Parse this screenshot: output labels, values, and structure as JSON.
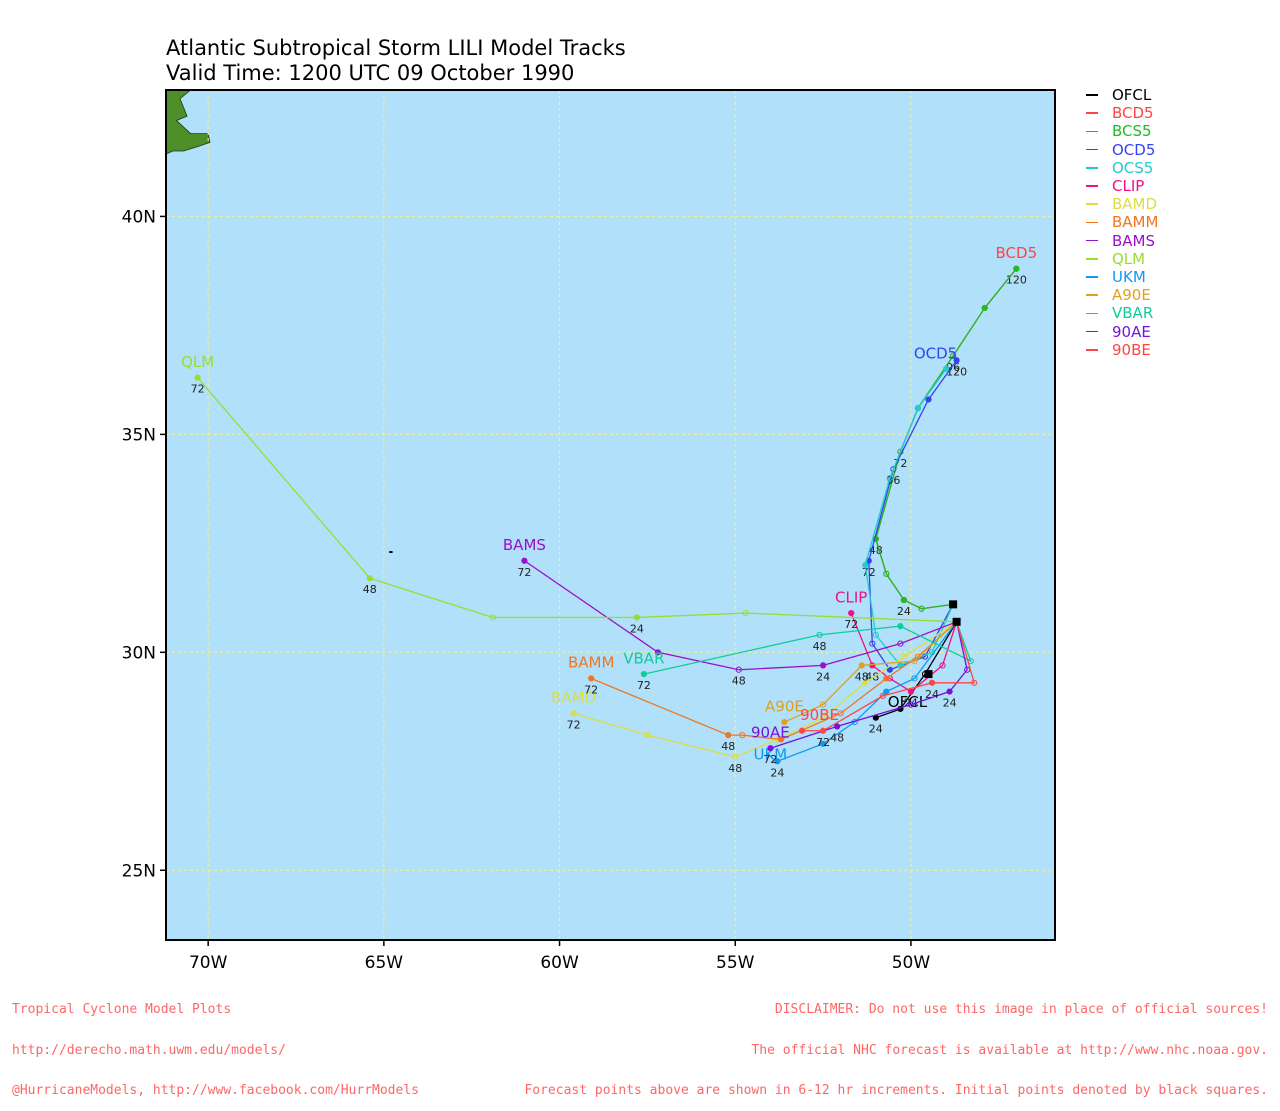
{
  "title": "Atlantic Subtropical Storm LILI Model Tracks",
  "subtitle": "Valid Time: 1200 UTC 09 October 1990",
  "footer_left": [
    "Tropical Cyclone Model Plots",
    "http://derecho.math.uwm.edu/models/",
    "@HurricaneModels, http://www.facebook.com/HurrModels"
  ],
  "footer_right": [
    "DISCLAIMER: Do not use this image in place of official sources!",
    "The official NHC forecast is available at http://www.nhc.noaa.gov.",
    "Forecast points above are shown in 6-12 hr increments. Initial points denoted by black squares."
  ],
  "chart_data": {
    "type": "line",
    "projection": "lon-lat map",
    "xlim": [
      -71.2,
      -45.9
    ],
    "ylim": [
      23.4,
      42.9
    ],
    "xticks": [
      {
        "value": -70,
        "label": "70W"
      },
      {
        "value": -65,
        "label": "65W"
      },
      {
        "value": -60,
        "label": "60W"
      },
      {
        "value": -55,
        "label": "55W"
      },
      {
        "value": -50,
        "label": "50W"
      }
    ],
    "yticks": [
      {
        "value": 25,
        "label": "25N"
      },
      {
        "value": 30,
        "label": "30N"
      },
      {
        "value": 35,
        "label": "35N"
      },
      {
        "value": 40,
        "label": "40N"
      }
    ],
    "grid": true,
    "legend_position": "right",
    "colors": {
      "ocean": "#b0e0fa",
      "land": "#4e8f2a",
      "grid": "#f0f0a0"
    },
    "initial_points": [
      {
        "lon": -48.8,
        "lat": 31.1
      },
      {
        "lon": -48.7,
        "lat": 30.7
      },
      {
        "lon": -49.5,
        "lat": 29.5
      }
    ],
    "series": [
      {
        "name": "OFCL",
        "color": "#000000",
        "label_text": "OFCL",
        "points": [
          [
            -48.7,
            30.7
          ],
          [
            -49.6,
            29.5
          ],
          [
            -50.3,
            28.7
          ],
          [
            -51.0,
            28.5
          ]
        ],
        "hours": {
          "3": "24"
        },
        "label_at": [
          -50.1,
          28.7
        ]
      },
      {
        "name": "BCD5",
        "color": "#ff4444",
        "label_text": "BCD5",
        "points": [
          [
            -48.8,
            31.1
          ],
          [
            -49.7,
            31.0
          ],
          [
            -50.2,
            31.2
          ],
          [
            -50.7,
            31.8
          ],
          [
            -51.0,
            32.6
          ],
          [
            -50.3,
            34.6
          ],
          [
            -49.8,
            35.6
          ],
          [
            -48.8,
            36.8
          ],
          [
            -47.9,
            37.9
          ],
          [
            -47.0,
            38.8
          ]
        ],
        "hours": {
          "2": "24",
          "4": "48",
          "5": "72",
          "7": "96",
          "9": "120"
        },
        "label_at": [
          -47.0,
          39.0
        ]
      },
      {
        "name": "BCS5",
        "color": "#22bb22",
        "label_text": "",
        "points": [
          [
            -48.8,
            31.1
          ],
          [
            -49.7,
            31.0
          ],
          [
            -50.2,
            31.2
          ],
          [
            -50.7,
            31.8
          ],
          [
            -51.0,
            32.6
          ],
          [
            -50.3,
            34.6
          ],
          [
            -49.8,
            35.6
          ],
          [
            -48.8,
            36.8
          ],
          [
            -47.9,
            37.9
          ],
          [
            -47.0,
            38.8
          ]
        ],
        "hours": {},
        "label_at": null
      },
      {
        "name": "OCD5",
        "color": "#3344ee",
        "label_text": "OCD5",
        "points": [
          [
            -48.8,
            31.1
          ],
          [
            -49.6,
            29.9
          ],
          [
            -50.6,
            29.6
          ],
          [
            -51.1,
            30.2
          ],
          [
            -51.2,
            32.1
          ],
          [
            -50.5,
            34.2
          ],
          [
            -49.5,
            35.8
          ],
          [
            -48.7,
            36.7
          ]
        ],
        "hours": {
          "4": "72",
          "5": "96",
          "7": "120"
        },
        "label_at": [
          -49.3,
          36.7
        ]
      },
      {
        "name": "OCS5",
        "color": "#22cccc",
        "label_text": "",
        "points": [
          [
            -48.8,
            31.1
          ],
          [
            -49.4,
            30.0
          ],
          [
            -50.3,
            29.7
          ],
          [
            -51.0,
            30.4
          ],
          [
            -51.3,
            32.0
          ],
          [
            -50.6,
            34.0
          ],
          [
            -49.8,
            35.6
          ],
          [
            -49.0,
            36.5
          ]
        ],
        "hours": {},
        "label_at": null
      },
      {
        "name": "CLIP",
        "color": "#ee1188",
        "label_text": "CLIP",
        "points": [
          [
            -48.7,
            30.7
          ],
          [
            -49.1,
            29.7
          ],
          [
            -50.0,
            29.1
          ],
          [
            -50.6,
            29.4
          ],
          [
            -51.1,
            29.7
          ],
          [
            -51.7,
            30.9
          ]
        ],
        "hours": {
          "2": "24",
          "4": "48",
          "5": "72"
        },
        "label_at": [
          -51.7,
          31.1
        ]
      },
      {
        "name": "BAMD",
        "color": "#dddd44",
        "label_text": "BAMD",
        "points": [
          [
            -48.7,
            30.7
          ],
          [
            -50.2,
            29.9
          ],
          [
            -51.3,
            29.3
          ],
          [
            -52.5,
            28.5
          ],
          [
            -53.8,
            28.0
          ],
          [
            -55.0,
            27.6
          ],
          [
            -57.5,
            28.1
          ],
          [
            -59.6,
            28.6
          ]
        ],
        "hours": {
          "5": "48",
          "7": "72"
        },
        "label_at": [
          -59.6,
          28.8
        ]
      },
      {
        "name": "BAMM",
        "color": "#ee7722",
        "label_text": "BAMM",
        "points": [
          [
            -48.7,
            30.7
          ],
          [
            -49.8,
            29.9
          ],
          [
            -50.7,
            29.4
          ],
          [
            -52.0,
            28.6
          ],
          [
            -53.7,
            28.0
          ],
          [
            -54.8,
            28.1
          ],
          [
            -55.2,
            28.1
          ],
          [
            -59.1,
            29.4
          ]
        ],
        "hours": {
          "6": "48",
          "7": "72"
        },
        "label_at": [
          -59.1,
          29.6
        ]
      },
      {
        "name": "BAMS",
        "color": "#9911cc",
        "label_text": "BAMS",
        "points": [
          [
            -48.7,
            30.7
          ],
          [
            -50.3,
            30.2
          ],
          [
            -52.5,
            29.7
          ],
          [
            -54.9,
            29.6
          ],
          [
            -57.2,
            30.0
          ],
          [
            -61.0,
            32.1
          ]
        ],
        "hours": {
          "2": "24",
          "3": "48",
          "5": "72"
        },
        "label_at": [
          -61.0,
          32.3
        ]
      },
      {
        "name": "QLM",
        "color": "#99dd33",
        "label_text": "QLM",
        "points": [
          [
            -48.7,
            30.7
          ],
          [
            -54.7,
            30.9
          ],
          [
            -57.8,
            30.8
          ],
          [
            -61.9,
            30.8
          ],
          [
            -65.4,
            31.7
          ],
          [
            -70.3,
            36.3
          ]
        ],
        "hours": {
          "2": "24",
          "4": "48",
          "5": "72"
        },
        "label_at": [
          -70.3,
          36.5
        ]
      },
      {
        "name": "UKM",
        "color": "#1199ee",
        "label_text": "UKM",
        "points": [
          [
            -48.7,
            30.7
          ],
          [
            -49.9,
            29.4
          ],
          [
            -50.7,
            29.1
          ],
          [
            -51.6,
            28.4
          ],
          [
            -52.5,
            27.9
          ],
          [
            -53.8,
            27.5
          ]
        ],
        "hours": {
          "5": "24"
        },
        "label_at": [
          -54.0,
          27.5
        ]
      },
      {
        "name": "A90E",
        "color": "#e0a020",
        "label_text": "A90E",
        "points": [
          [
            -48.7,
            30.7
          ],
          [
            -49.9,
            29.8
          ],
          [
            -51.4,
            29.7
          ],
          [
            -52.5,
            28.8
          ],
          [
            -53.6,
            28.4
          ]
        ],
        "hours": {
          "2": "48"
        },
        "label_at": [
          -53.6,
          28.6
        ]
      },
      {
        "name": "VBAR",
        "color": "#11cc99",
        "label_text": "VBAR",
        "points": [
          [
            -48.7,
            30.7
          ],
          [
            -48.3,
            29.8
          ],
          [
            -50.3,
            30.6
          ],
          [
            -52.6,
            30.4
          ],
          [
            -57.6,
            29.5
          ]
        ],
        "hours": {
          "3": "48",
          "4": "72"
        },
        "label_at": [
          -57.6,
          29.7
        ]
      },
      {
        "name": "90AE",
        "color": "#7711dd",
        "label_text": "90AE",
        "points": [
          [
            -48.7,
            30.7
          ],
          [
            -48.4,
            29.6
          ],
          [
            -48.9,
            29.1
          ],
          [
            -50.0,
            28.8
          ],
          [
            -52.1,
            28.3
          ],
          [
            -54.0,
            27.8
          ]
        ],
        "hours": {
          "2": "24",
          "4": "48",
          "5": "72"
        },
        "label_at": [
          -54.0,
          28.0
        ]
      },
      {
        "name": "90BE",
        "color": "#ff4444",
        "label_text": "90BE",
        "points": [
          [
            -48.7,
            30.7
          ],
          [
            -48.2,
            29.3
          ],
          [
            -49.4,
            29.3
          ],
          [
            -50.8,
            29.0
          ],
          [
            -52.5,
            28.2
          ],
          [
            -53.1,
            28.2
          ]
        ],
        "hours": {
          "2": "24",
          "4": "72"
        },
        "label_at": [
          -52.6,
          28.4
        ]
      }
    ]
  }
}
